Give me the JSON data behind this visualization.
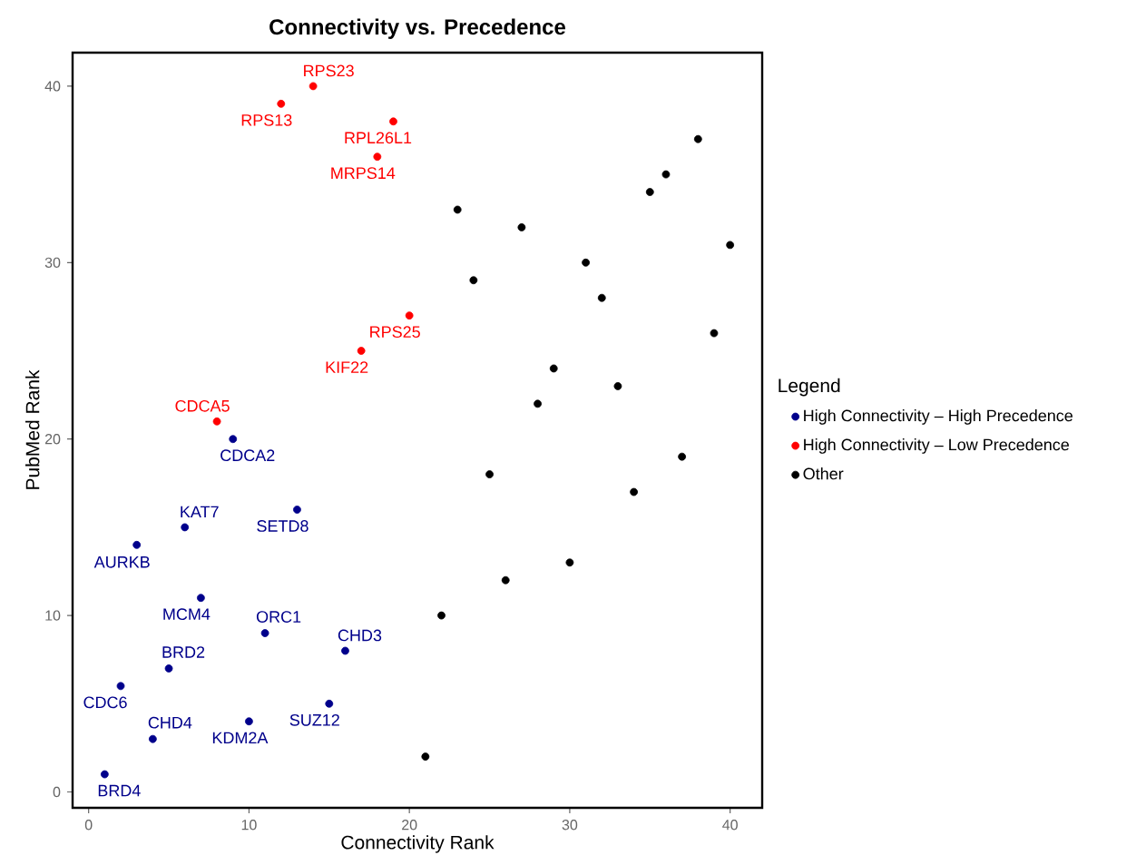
{
  "chart_data": {
    "type": "scatter",
    "title": "Connectivity vs. Precedence",
    "xlabel": "Connectivity Rank",
    "ylabel": "PubMed Rank",
    "legend_title": "Legend",
    "xlim": [
      -1,
      42
    ],
    "ylim": [
      -0.9,
      41.9
    ],
    "xticks": [
      0,
      10,
      20,
      30,
      40
    ],
    "yticks": [
      0,
      10,
      20,
      30,
      40
    ],
    "grid": false,
    "legend": "right",
    "marker": "circle",
    "series": [
      {
        "name": "High Connectivity – High Precedence",
        "color": "#00008b",
        "x": [
          9,
          6,
          13,
          3,
          7,
          11,
          16,
          5,
          2,
          4,
          10,
          15,
          1
        ],
        "values": [
          20,
          15,
          16,
          14,
          11,
          9,
          8,
          7,
          6,
          3,
          4,
          5,
          1
        ]
      },
      {
        "name": "High Connectivity – Low Precedence",
        "color": "#ff0000",
        "x": [
          14,
          12,
          19,
          18,
          20,
          17,
          8
        ],
        "values": [
          40,
          39,
          38,
          36,
          27,
          25,
          21
        ]
      },
      {
        "name": "Other",
        "color": "#000000",
        "x": [
          21,
          22,
          26,
          30,
          25,
          34,
          37,
          28,
          29,
          33,
          39,
          24,
          32,
          31,
          40,
          23,
          27,
          35,
          36,
          38
        ],
        "values": [
          2,
          10,
          12,
          13,
          18,
          17,
          19,
          22,
          24,
          23,
          26,
          29,
          28,
          30,
          31,
          33,
          32,
          34,
          35,
          37
        ]
      }
    ],
    "annotations": [
      {
        "text": "RPS23",
        "x": 14,
        "y": 40
      },
      {
        "text": "RPS13",
        "x": 12,
        "y": 39
      },
      {
        "text": "RPL26L1",
        "x": 19,
        "y": 38
      },
      {
        "text": "MRPS14",
        "x": 18,
        "y": 36
      },
      {
        "text": "RPS25",
        "x": 20,
        "y": 27
      },
      {
        "text": "KIF22",
        "x": 17,
        "y": 25
      },
      {
        "text": "CDCA5",
        "x": 8,
        "y": 21
      },
      {
        "text": "CDCA2",
        "x": 9,
        "y": 20
      },
      {
        "text": "KAT7",
        "x": 6,
        "y": 15
      },
      {
        "text": "SETD8",
        "x": 13,
        "y": 16
      },
      {
        "text": "AURKB",
        "x": 3,
        "y": 14
      },
      {
        "text": "MCM4",
        "x": 7,
        "y": 11
      },
      {
        "text": "ORC1",
        "x": 11,
        "y": 9
      },
      {
        "text": "CHD3",
        "x": 16,
        "y": 8
      },
      {
        "text": "BRD2",
        "x": 5,
        "y": 7
      },
      {
        "text": "CDC6",
        "x": 2,
        "y": 6
      },
      {
        "text": "CHD4",
        "x": 4,
        "y": 3
      },
      {
        "text": "KDM2A",
        "x": 10,
        "y": 4
      },
      {
        "text": "SUZ12",
        "x": 15,
        "y": 5
      },
      {
        "text": "BRD4",
        "x": 1,
        "y": 1
      }
    ]
  }
}
